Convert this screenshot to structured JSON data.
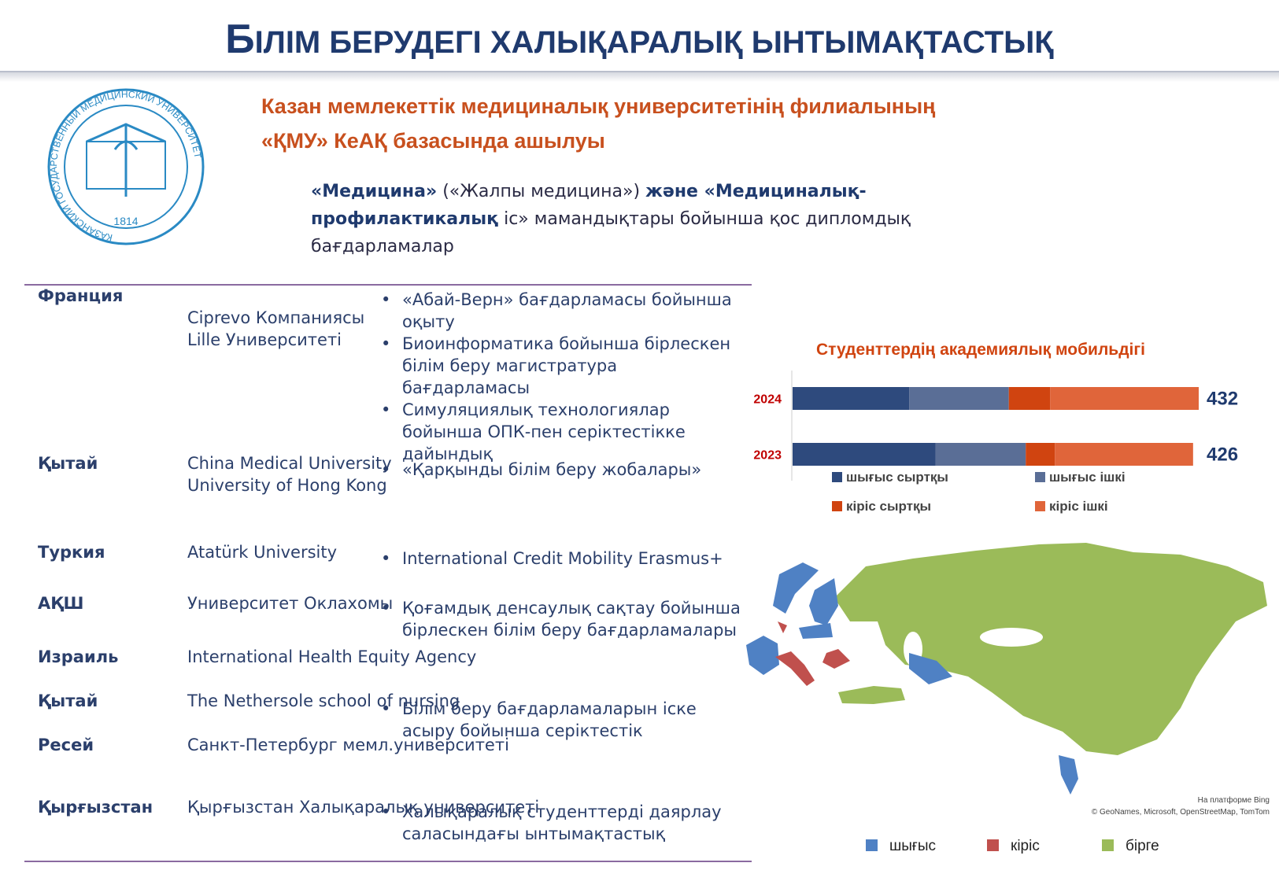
{
  "header": {
    "title": "БІЛІМ БЕРУДЕГІ ХАЛЫҚАРАЛЫҚ ЫНТЫМАҚТАСТЫҚ"
  },
  "logo": {
    "ring_text": "КАЗАНСКИЙ ГОСУДАРСТВЕННЫЙ МЕДИЦИНСКИЙ УНИВЕРСИТЕТ",
    "year": "1814"
  },
  "subtitle": [
    "Казан мемлекеттік медициналық университетінің филиалының",
    "«ҚМУ» КеАҚ базасында ашылуы"
  ],
  "description": [
    {
      "text": "«Медицина»",
      "bold": true
    },
    {
      "text": "(«Жалпы медицина»)",
      "bold": false
    },
    {
      "text": "және «Медициналық-профилактикалық",
      "bold": true
    },
    {
      "text": "іс» мамандықтары бойынша қос дипломдық бағдарламалар",
      "bold": false
    }
  ],
  "table": {
    "rows": [
      {
        "country": "Франция",
        "partner": [
          "Ciprevo Компаниясы",
          "Lille Университеті"
        ],
        "bullets": [
          "«Абай-Верн» бағдарламасы бойынша оқыту",
          "Биоинформатика бойынша бірлескен білім беру магистратура бағдарламасы",
          "Симуляциялық технологиялар бойынша ОПК-пен серіктестікке дайындық"
        ]
      },
      {
        "country": "Қытай",
        "partner": [
          "China Medical University",
          "University of Hong Kong"
        ],
        "bullets": [
          "«Қарқынды білім беру жобалары»"
        ]
      },
      {
        "country": "Туркия",
        "partner": [
          "Atatürk University"
        ],
        "bullets": [
          "International Credit Mobility Erasmus+"
        ]
      },
      {
        "country": "АҚШ",
        "partner": [
          "Университет Оклахомы"
        ],
        "bullets": [
          "Қоғамдық денсаулық сақтау бойынша бірлескен білім беру бағдарламалары"
        ]
      },
      {
        "country": "Израиль",
        "partner": [
          "International Health Equity Agency"
        ],
        "bullets": []
      },
      {
        "country": "Қытай",
        "partner": [
          "The Nethersole school of nursing"
        ],
        "bullets": [
          "Білім беру бағдарламаларын іске асыру бойынша серіктестік"
        ]
      },
      {
        "country": "Ресей",
        "partner": [
          "Санкт-Петербург мемл.университеті"
        ],
        "bullets": []
      },
      {
        "country": "Қырғызстан",
        "partner": [
          "Қырғызстан Халықаралық университеті"
        ],
        "bullets": [
          "Халықаралық студенттерді даярлау саласындағы ынтымақтастық"
        ]
      }
    ]
  },
  "chart_data": {
    "type": "bar",
    "orientation": "horizontal",
    "stacked": true,
    "title": "Студенттердің академиялық мобильдігі",
    "categories": [
      "2024",
      "2023"
    ],
    "series": [
      {
        "name": "шығыс сыртқы",
        "color": "#2e4a7d",
        "values": [
          124,
          152
        ]
      },
      {
        "name": "шығыс ішкі",
        "color": "#5a6e96",
        "values": [
          106,
          96
        ]
      },
      {
        "name": "кіріс сыртқы",
        "color": "#d04410",
        "values": [
          44,
          31
        ]
      },
      {
        "name": "кіріс ішкі",
        "color": "#e0653a",
        "values": [
          158,
          147
        ]
      }
    ],
    "totals": [
      432,
      426
    ]
  },
  "map": {
    "legend": [
      {
        "name": "шығыс",
        "color": "#4f81c4"
      },
      {
        "name": "кіріс",
        "color": "#c0504d"
      },
      {
        "name": "бірге",
        "color": "#9bbb59"
      }
    ],
    "attribution": [
      "На платформе Bing",
      "© GeoNames, Microsoft, OpenStreetMap, TomTom"
    ]
  }
}
